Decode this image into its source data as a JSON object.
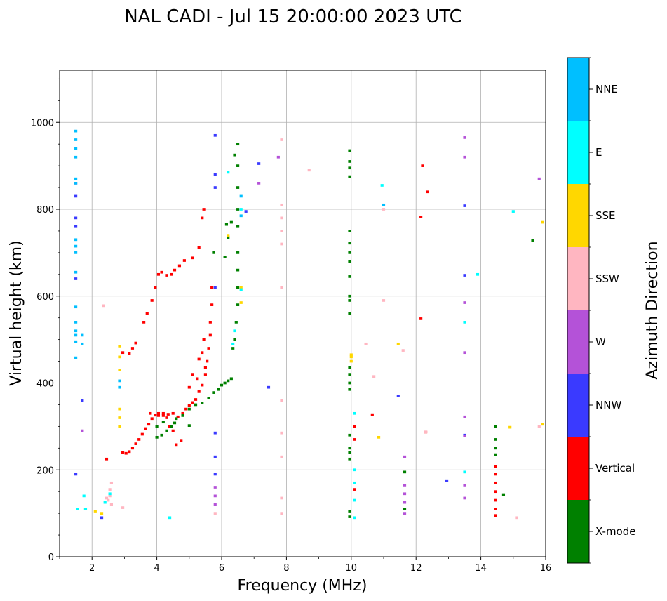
{
  "chart_data": {
    "type": "scatter",
    "title": "NAL CADI - Jul 15 20:00:00 2023 UTC",
    "xlabel": "Frequency (MHz)",
    "ylabel": "Virtual height (km)",
    "xlim": [
      1,
      16
    ],
    "ylim": [
      0,
      1120
    ],
    "xticks": [
      2,
      4,
      6,
      8,
      10,
      12,
      14,
      16
    ],
    "yticks": [
      0,
      200,
      400,
      600,
      800,
      1000
    ],
    "grid": true,
    "colorbar": {
      "label": "Azimuth Direction",
      "position": "right",
      "categories": [
        {
          "name": "X-mode",
          "color": "#008000"
        },
        {
          "name": "Vertical",
          "color": "#ff0000"
        },
        {
          "name": "NNW",
          "color": "#3a3aff"
        },
        {
          "name": "W",
          "color": "#b452d8"
        },
        {
          "name": "SSW",
          "color": "#ffb6c1"
        },
        {
          "name": "SSE",
          "color": "#ffd700"
        },
        {
          "name": "E",
          "color": "#00ffff"
        },
        {
          "name": "NNE",
          "color": "#00bfff"
        }
      ]
    },
    "series": [
      {
        "name": "Vertical",
        "points": [
          [
            2.95,
            240
          ],
          [
            3.05,
            238
          ],
          [
            3.15,
            242
          ],
          [
            3.25,
            250
          ],
          [
            3.35,
            260
          ],
          [
            3.45,
            270
          ],
          [
            3.55,
            282
          ],
          [
            3.65,
            295
          ],
          [
            3.75,
            305
          ],
          [
            3.85,
            318
          ],
          [
            3.95,
            326
          ],
          [
            4.05,
            330
          ],
          [
            4.2,
            330
          ],
          [
            4.35,
            328
          ],
          [
            4.5,
            330
          ],
          [
            4.65,
            322
          ],
          [
            4.8,
            330
          ],
          [
            4.9,
            340
          ],
          [
            5.0,
            348
          ],
          [
            5.1,
            355
          ],
          [
            5.2,
            362
          ],
          [
            5.3,
            380
          ],
          [
            5.4,
            395
          ],
          [
            5.5,
            420
          ],
          [
            5.55,
            450
          ],
          [
            5.6,
            480
          ],
          [
            5.65,
            510
          ],
          [
            5.65,
            540
          ],
          [
            5.7,
            580
          ],
          [
            5.7,
            620
          ],
          [
            3.6,
            540
          ],
          [
            3.7,
            560
          ],
          [
            3.85,
            590
          ],
          [
            3.95,
            620
          ],
          [
            4.05,
            650
          ],
          [
            4.15,
            655
          ],
          [
            4.3,
            648
          ],
          [
            4.45,
            650
          ],
          [
            4.55,
            660
          ],
          [
            4.7,
            670
          ],
          [
            4.85,
            682
          ],
          [
            5.1,
            688
          ],
          [
            5.3,
            712
          ],
          [
            5.4,
            780
          ],
          [
            5.45,
            800
          ],
          [
            3.15,
            468
          ],
          [
            3.25,
            480
          ],
          [
            3.35,
            492
          ],
          [
            2.95,
            470
          ],
          [
            3.8,
            330
          ],
          [
            4.05,
            325
          ],
          [
            4.2,
            325
          ],
          [
            4.3,
            320
          ],
          [
            4.4,
            300
          ],
          [
            4.5,
            290
          ],
          [
            4.75,
            268
          ],
          [
            4.6,
            258
          ],
          [
            5.0,
            390
          ],
          [
            5.1,
            420
          ],
          [
            5.25,
            410
          ],
          [
            5.3,
            455
          ],
          [
            5.4,
            470
          ],
          [
            5.45,
            500
          ],
          [
            5.5,
            435
          ],
          [
            2.45,
            225
          ],
          [
            12.2,
            900
          ],
          [
            12.35,
            840
          ],
          [
            12.15,
            782
          ],
          [
            12.3,
            287
          ],
          [
            12.15,
            548
          ],
          [
            14.45,
            208
          ],
          [
            14.45,
            190
          ],
          [
            14.45,
            170
          ],
          [
            14.45,
            150
          ],
          [
            14.45,
            130
          ],
          [
            14.45,
            110
          ],
          [
            14.45,
            95
          ],
          [
            10.1,
            155
          ],
          [
            10.1,
            300
          ],
          [
            10.1,
            270
          ],
          [
            10.65,
            327
          ]
        ]
      },
      {
        "name": "X-mode",
        "points": [
          [
            4.0,
            275
          ],
          [
            4.15,
            280
          ],
          [
            4.3,
            290
          ],
          [
            4.45,
            300
          ],
          [
            4.6,
            318
          ],
          [
            4.8,
            325
          ],
          [
            5.0,
            340
          ],
          [
            5.2,
            350
          ],
          [
            5.4,
            354
          ],
          [
            5.6,
            365
          ],
          [
            5.75,
            378
          ],
          [
            5.9,
            385
          ],
          [
            6.0,
            395
          ],
          [
            6.1,
            400
          ],
          [
            6.2,
            405
          ],
          [
            6.3,
            410
          ],
          [
            6.35,
            480
          ],
          [
            6.4,
            500
          ],
          [
            6.45,
            540
          ],
          [
            6.5,
            580
          ],
          [
            6.5,
            620
          ],
          [
            6.5,
            660
          ],
          [
            6.5,
            700
          ],
          [
            6.5,
            760
          ],
          [
            6.5,
            800
          ],
          [
            6.5,
            850
          ],
          [
            6.5,
            900
          ],
          [
            6.5,
            950
          ],
          [
            6.4,
            925
          ],
          [
            6.3,
            770
          ],
          [
            6.15,
            765
          ],
          [
            6.2,
            735
          ],
          [
            6.1,
            690
          ],
          [
            5.75,
            700
          ],
          [
            4.0,
            300
          ],
          [
            4.2,
            310
          ],
          [
            4.55,
            308
          ],
          [
            5.0,
            302
          ],
          [
            9.95,
            935
          ],
          [
            9.95,
            910
          ],
          [
            9.95,
            895
          ],
          [
            9.95,
            875
          ],
          [
            9.95,
            750
          ],
          [
            9.95,
            722
          ],
          [
            9.95,
            700
          ],
          [
            9.95,
            680
          ],
          [
            9.95,
            645
          ],
          [
            9.95,
            600
          ],
          [
            9.95,
            590
          ],
          [
            9.95,
            560
          ],
          [
            9.95,
            435
          ],
          [
            9.95,
            420
          ],
          [
            9.95,
            400
          ],
          [
            9.95,
            385
          ],
          [
            9.95,
            280
          ],
          [
            9.95,
            250
          ],
          [
            9.95,
            240
          ],
          [
            9.95,
            225
          ],
          [
            9.95,
            105
          ],
          [
            9.95,
            92
          ],
          [
            11.65,
            195
          ],
          [
            11.65,
            110
          ],
          [
            14.45,
            300
          ],
          [
            14.45,
            270
          ],
          [
            14.45,
            250
          ],
          [
            14.45,
            235
          ],
          [
            14.7,
            143
          ],
          [
            15.6,
            728
          ]
        ]
      },
      {
        "name": "NNW",
        "points": [
          [
            1.5,
            830
          ],
          [
            1.5,
            780
          ],
          [
            1.5,
            760
          ],
          [
            1.5,
            640
          ],
          [
            1.5,
            190
          ],
          [
            1.7,
            360
          ],
          [
            2.3,
            90
          ],
          [
            5.8,
            970
          ],
          [
            5.8,
            880
          ],
          [
            5.8,
            850
          ],
          [
            5.8,
            620
          ],
          [
            5.8,
            285
          ],
          [
            5.8,
            230
          ],
          [
            5.8,
            190
          ],
          [
            6.75,
            795
          ],
          [
            7.15,
            905
          ],
          [
            7.45,
            390
          ],
          [
            11.45,
            370
          ],
          [
            12.95,
            175
          ],
          [
            13.5,
            808
          ],
          [
            13.5,
            648
          ],
          [
            13.5,
            280
          ]
        ]
      },
      {
        "name": "W",
        "points": [
          [
            1.5,
            860
          ],
          [
            1.7,
            290
          ],
          [
            5.8,
            160
          ],
          [
            5.8,
            140
          ],
          [
            5.8,
            120
          ],
          [
            7.15,
            860
          ],
          [
            7.75,
            920
          ],
          [
            11.65,
            230
          ],
          [
            11.65,
            165
          ],
          [
            11.65,
            145
          ],
          [
            11.65,
            125
          ],
          [
            11.65,
            100
          ],
          [
            13.5,
            965
          ],
          [
            13.5,
            920
          ],
          [
            13.5,
            585
          ],
          [
            13.5,
            470
          ],
          [
            13.5,
            322
          ],
          [
            13.5,
            278
          ],
          [
            13.5,
            165
          ],
          [
            13.5,
            135
          ],
          [
            15.8,
            870
          ]
        ]
      },
      {
        "name": "SSW",
        "points": [
          [
            2.45,
            135
          ],
          [
            2.55,
            140
          ],
          [
            2.5,
            130
          ],
          [
            2.6,
            120
          ],
          [
            2.55,
            155
          ],
          [
            2.6,
            170
          ],
          [
            2.35,
            578
          ],
          [
            2.95,
            113
          ],
          [
            5.8,
            100
          ],
          [
            7.85,
            960
          ],
          [
            7.85,
            810
          ],
          [
            7.85,
            780
          ],
          [
            7.85,
            750
          ],
          [
            7.85,
            720
          ],
          [
            7.85,
            620
          ],
          [
            7.85,
            360
          ],
          [
            7.85,
            285
          ],
          [
            7.85,
            230
          ],
          [
            7.85,
            135
          ],
          [
            7.85,
            100
          ],
          [
            8.7,
            890
          ],
          [
            10.45,
            490
          ],
          [
            10.7,
            415
          ],
          [
            11.0,
            800
          ],
          [
            11.0,
            590
          ],
          [
            11.6,
            475
          ],
          [
            12.3,
            287
          ],
          [
            15.1,
            90
          ],
          [
            15.8,
            300
          ]
        ]
      },
      {
        "name": "SSE",
        "points": [
          [
            1.8,
            110
          ],
          [
            2.1,
            105
          ],
          [
            2.3,
            100
          ],
          [
            2.85,
            485
          ],
          [
            2.85,
            460
          ],
          [
            2.85,
            430
          ],
          [
            2.85,
            340
          ],
          [
            2.85,
            320
          ],
          [
            2.85,
            300
          ],
          [
            6.2,
            740
          ],
          [
            6.6,
            620
          ],
          [
            6.6,
            585
          ],
          [
            10.0,
            465
          ],
          [
            10.0,
            450
          ],
          [
            10.0,
            460
          ],
          [
            10.85,
            275
          ],
          [
            11.45,
            490
          ],
          [
            14.9,
            298
          ],
          [
            15.9,
            770
          ],
          [
            15.9,
            305
          ]
        ]
      },
      {
        "name": "E",
        "points": [
          [
            1.55,
            110
          ],
          [
            1.75,
            140
          ],
          [
            1.8,
            110
          ],
          [
            2.4,
            125
          ],
          [
            2.55,
            145
          ],
          [
            4.4,
            90
          ],
          [
            6.2,
            885
          ],
          [
            6.6,
            800
          ],
          [
            6.6,
            615
          ],
          [
            6.4,
            520
          ],
          [
            6.35,
            490
          ],
          [
            10.1,
            330
          ],
          [
            10.1,
            200
          ],
          [
            10.1,
            170
          ],
          [
            10.1,
            130
          ],
          [
            10.1,
            90
          ],
          [
            10.95,
            855
          ],
          [
            13.5,
            540
          ],
          [
            13.5,
            195
          ],
          [
            13.9,
            650
          ],
          [
            15.0,
            795
          ]
        ]
      },
      {
        "name": "NNE",
        "points": [
          [
            1.5,
            980
          ],
          [
            1.5,
            960
          ],
          [
            1.5,
            940
          ],
          [
            1.5,
            920
          ],
          [
            1.5,
            870
          ],
          [
            1.5,
            860
          ],
          [
            1.5,
            730
          ],
          [
            1.5,
            715
          ],
          [
            1.5,
            700
          ],
          [
            1.5,
            655
          ],
          [
            1.5,
            575
          ],
          [
            1.5,
            540
          ],
          [
            1.5,
            520
          ],
          [
            1.5,
            510
          ],
          [
            1.5,
            495
          ],
          [
            1.5,
            458
          ],
          [
            1.7,
            510
          ],
          [
            1.7,
            490
          ],
          [
            2.85,
            405
          ],
          [
            2.85,
            390
          ],
          [
            6.6,
            830
          ],
          [
            6.6,
            785
          ],
          [
            11.0,
            810
          ]
        ]
      }
    ]
  }
}
